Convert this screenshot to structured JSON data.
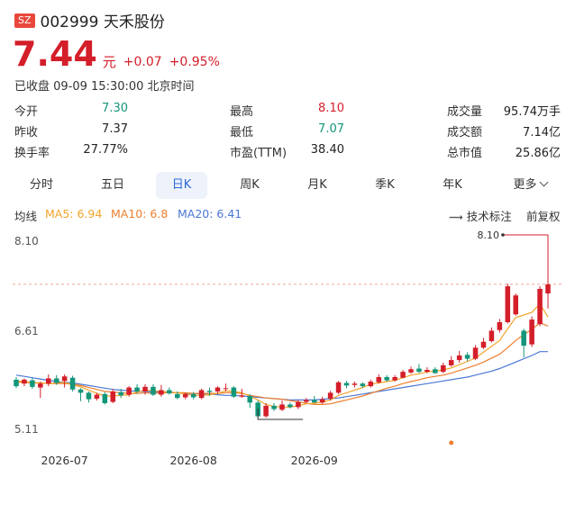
{
  "header": {
    "exchange": "SZ",
    "title": "002999 天禾股份"
  },
  "quote": {
    "price": "7.44",
    "unit": "元",
    "change": "+0.07",
    "change_pct": "+0.95%",
    "status": "已收盘 09-09 15:30:00 北京时间"
  },
  "stats": [
    {
      "label": "今开",
      "value": "7.30",
      "color": "#14967a"
    },
    {
      "label": "最高",
      "value": "8.10",
      "color": "#d41e2a"
    },
    {
      "label": "成交量",
      "value": "95.74万手",
      "color": "#222222"
    },
    {
      "label": "昨收",
      "value": "7.37",
      "color": "#222222"
    },
    {
      "label": "最低",
      "value": "7.07",
      "color": "#14967a"
    },
    {
      "label": "成交额",
      "value": "7.14亿",
      "color": "#222222"
    },
    {
      "label": "换手率",
      "value": "27.77%",
      "color": "#222222"
    },
    {
      "label": "市盈(TTM)",
      "value": "38.40",
      "color": "#222222"
    },
    {
      "label": "总市值",
      "value": "25.86亿",
      "color": "#222222"
    }
  ],
  "tabs": [
    "分时",
    "五日",
    "日K",
    "周K",
    "月K",
    "季K",
    "年K",
    "更多"
  ],
  "active_tab": "日K",
  "indicators": {
    "label": "均线",
    "ma5": "MA5: 6.94",
    "ma10": "MA10: 6.8",
    "ma20": "MA20: 6.41",
    "tech": "技术标注",
    "adjust": "前复权",
    "colors": {
      "ma5": "#f2a42a",
      "ma10": "#ee7f2e",
      "ma20": "#4a78d6"
    }
  },
  "chart_data": {
    "type": "candlestick",
    "y_ticks": [
      "8.10",
      "6.61",
      "5.11"
    ],
    "ylim": [
      5.11,
      8.1
    ],
    "x_ticks": [
      {
        "label": "2026-07",
        "index": 6
      },
      {
        "label": "2026-08",
        "index": 22
      },
      {
        "label": "2026-09",
        "index": 37
      }
    ],
    "annotations": {
      "high_label": "8.10"
    },
    "candles": [
      [
        5.98,
        5.88,
        6.02,
        5.85
      ],
      [
        5.92,
        5.98,
        6.0,
        5.88
      ],
      [
        5.97,
        5.87,
        6.01,
        5.84
      ],
      [
        5.86,
        5.92,
        5.95,
        5.7
      ],
      [
        5.92,
        6.0,
        6.06,
        5.88
      ],
      [
        6.0,
        5.93,
        6.05,
        5.9
      ],
      [
        5.96,
        6.03,
        6.06,
        5.86
      ],
      [
        6.01,
        5.83,
        6.04,
        5.8
      ],
      [
        5.83,
        5.78,
        5.85,
        5.65
      ],
      [
        5.78,
        5.68,
        5.8,
        5.63
      ],
      [
        5.69,
        5.75,
        5.78,
        5.66
      ],
      [
        5.76,
        5.62,
        5.79,
        5.6
      ],
      [
        5.64,
        5.8,
        5.84,
        5.62
      ],
      [
        5.79,
        5.74,
        5.84,
        5.7
      ],
      [
        5.75,
        5.86,
        5.88,
        5.72
      ],
      [
        5.86,
        5.8,
        5.91,
        5.77
      ],
      [
        5.8,
        5.87,
        5.91,
        5.75
      ],
      [
        5.87,
        5.75,
        5.91,
        5.73
      ],
      [
        5.75,
        5.82,
        5.9,
        5.72
      ],
      [
        5.82,
        5.77,
        5.86,
        5.75
      ],
      [
        5.76,
        5.7,
        5.8,
        5.68
      ],
      [
        5.71,
        5.76,
        5.78,
        5.68
      ],
      [
        5.76,
        5.71,
        5.79,
        5.68
      ],
      [
        5.7,
        5.82,
        5.84,
        5.68
      ],
      [
        5.81,
        5.79,
        5.86,
        5.73
      ],
      [
        5.8,
        5.86,
        5.88,
        5.76
      ],
      [
        5.84,
        5.85,
        5.92,
        5.8
      ],
      [
        5.86,
        5.72,
        5.88,
        5.7
      ],
      [
        5.72,
        5.74,
        5.84,
        5.7
      ],
      [
        5.73,
        5.63,
        5.76,
        5.55
      ],
      [
        5.63,
        5.42,
        5.66,
        5.4
      ],
      [
        5.42,
        5.58,
        5.62,
        5.4
      ],
      [
        5.58,
        5.53,
        5.62,
        5.5
      ],
      [
        5.52,
        5.6,
        5.66,
        5.5
      ],
      [
        5.6,
        5.56,
        5.63,
        5.54
      ],
      [
        5.56,
        5.64,
        5.67,
        5.53
      ],
      [
        5.64,
        5.67,
        5.7,
        5.62
      ],
      [
        5.67,
        5.63,
        5.73,
        5.62
      ],
      [
        5.63,
        5.68,
        5.72,
        5.61
      ],
      [
        5.69,
        5.78,
        5.81,
        5.66
      ],
      [
        5.78,
        5.94,
        5.96,
        5.76
      ],
      [
        5.93,
        5.89,
        5.96,
        5.85
      ],
      [
        5.9,
        5.92,
        5.95,
        5.86
      ],
      [
        5.92,
        5.88,
        5.94,
        5.85
      ],
      [
        5.88,
        5.95,
        5.98,
        5.86
      ],
      [
        5.94,
        6.02,
        6.06,
        5.92
      ],
      [
        6.02,
        5.97,
        6.05,
        5.95
      ],
      [
        5.97,
        6.02,
        6.05,
        5.95
      ],
      [
        6.01,
        6.1,
        6.13,
        6.0
      ],
      [
        6.09,
        6.14,
        6.18,
        6.07
      ],
      [
        6.15,
        6.1,
        6.22,
        6.08
      ],
      [
        6.1,
        6.13,
        6.17,
        6.08
      ],
      [
        6.14,
        6.08,
        6.17,
        6.07
      ],
      [
        6.1,
        6.2,
        6.24,
        6.08
      ],
      [
        6.2,
        6.28,
        6.34,
        6.18
      ],
      [
        6.28,
        6.35,
        6.42,
        6.24
      ],
      [
        6.36,
        6.3,
        6.4,
        6.26
      ],
      [
        6.3,
        6.47,
        6.51,
        6.28
      ],
      [
        6.47,
        6.56,
        6.62,
        6.45
      ],
      [
        6.57,
        6.73,
        6.78,
        6.55
      ],
      [
        6.74,
        6.86,
        6.91,
        6.7
      ],
      [
        6.86,
        7.41,
        7.45,
        6.84
      ],
      [
        6.98,
        7.27,
        7.3,
        6.96
      ],
      [
        6.73,
        6.5,
        6.76,
        6.32
      ],
      [
        6.52,
        6.9,
        6.95,
        6.48
      ],
      [
        6.83,
        7.37,
        7.41,
        6.8
      ],
      [
        7.3,
        7.44,
        8.1,
        7.07
      ]
    ],
    "ma5": [
      5.96,
      5.95,
      5.94,
      5.93,
      5.92,
      5.93,
      5.94,
      5.9,
      5.87,
      5.82,
      5.77,
      5.73,
      5.73,
      5.74,
      5.75,
      5.79,
      5.82,
      5.81,
      5.8,
      5.79,
      5.78,
      5.76,
      5.74,
      5.74,
      5.75,
      5.77,
      5.81,
      5.8,
      5.78,
      5.73,
      5.67,
      5.6,
      5.57,
      5.56,
      5.56,
      5.58,
      5.61,
      5.62,
      5.64,
      5.67,
      5.74,
      5.78,
      5.82,
      5.86,
      5.91,
      5.93,
      5.95,
      5.97,
      6.01,
      6.05,
      6.07,
      6.1,
      6.11,
      6.13,
      6.16,
      6.21,
      6.26,
      6.31,
      6.4,
      6.49,
      6.58,
      6.76,
      6.93,
      6.97,
      7.01,
      7.14,
      6.94
    ],
    "ma10": [
      5.94,
      5.94,
      5.93,
      5.93,
      5.92,
      5.92,
      5.92,
      5.91,
      5.89,
      5.86,
      5.83,
      5.8,
      5.79,
      5.78,
      5.77,
      5.77,
      5.78,
      5.77,
      5.78,
      5.78,
      5.78,
      5.78,
      5.77,
      5.77,
      5.77,
      5.77,
      5.78,
      5.78,
      5.77,
      5.74,
      5.72,
      5.7,
      5.69,
      5.68,
      5.66,
      5.64,
      5.62,
      5.6,
      5.6,
      5.61,
      5.64,
      5.67,
      5.7,
      5.73,
      5.77,
      5.81,
      5.85,
      5.88,
      5.92,
      5.95,
      5.98,
      6.01,
      6.03,
      6.05,
      6.08,
      6.12,
      6.16,
      6.2,
      6.25,
      6.31,
      6.37,
      6.47,
      6.58,
      6.67,
      6.75,
      6.85,
      6.8
    ],
    "ma20": [
      6.05,
      6.03,
      6.01,
      5.99,
      5.97,
      5.95,
      5.94,
      5.93,
      5.91,
      5.89,
      5.87,
      5.85,
      5.83,
      5.82,
      5.81,
      5.8,
      5.8,
      5.79,
      5.79,
      5.78,
      5.78,
      5.77,
      5.77,
      5.76,
      5.76,
      5.75,
      5.74,
      5.74,
      5.73,
      5.72,
      5.71,
      5.7,
      5.69,
      5.68,
      5.67,
      5.67,
      5.67,
      5.67,
      5.68,
      5.69,
      5.7,
      5.72,
      5.74,
      5.76,
      5.78,
      5.8,
      5.82,
      5.84,
      5.86,
      5.88,
      5.9,
      5.92,
      5.94,
      5.96,
      5.98,
      6.0,
      6.02,
      6.05,
      6.08,
      6.11,
      6.15,
      6.2,
      6.25,
      6.3,
      6.35,
      6.41,
      6.41
    ]
  }
}
